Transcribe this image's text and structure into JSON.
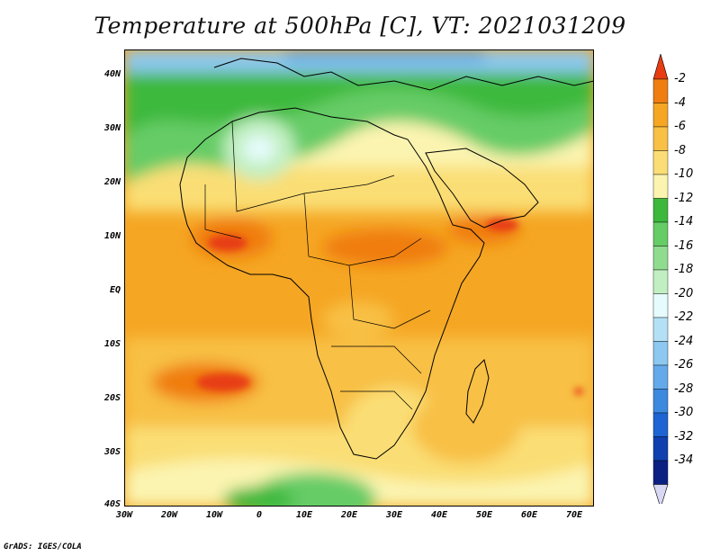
{
  "title": "Temperature at 500hPa [C], VT: 2021031209",
  "credit": "GrADS: IGES/COLA",
  "map": {
    "lat_labels": [
      "40N",
      "30N",
      "20N",
      "10N",
      "EQ",
      "10S",
      "20S",
      "30S",
      "40S"
    ],
    "lon_labels": [
      "30W",
      "20W",
      "10W",
      "0",
      "10E",
      "20E",
      "30E",
      "40E",
      "50E",
      "60E",
      "70E"
    ],
    "domain": {
      "lon": [
        -30,
        75
      ],
      "lat": [
        -40,
        45
      ]
    }
  },
  "colorbar": {
    "units": "C",
    "ticks": [
      "-2",
      "-4",
      "-6",
      "-8",
      "-10",
      "-12",
      "-14",
      "-16",
      "-18",
      "-20",
      "-22",
      "-24",
      "-26",
      "-28",
      "-30",
      "-32",
      "-34"
    ],
    "colors": [
      "#e83c12",
      "#f07d10",
      "#f5a623",
      "#f8c045",
      "#fade75",
      "#fbf4b0",
      "#3cb93c",
      "#66cc66",
      "#8fdc8f",
      "#c1efc1",
      "#e6fcfc",
      "#b4e0f5",
      "#8cc8ef",
      "#64aaea",
      "#3c8ae0",
      "#1e64d2",
      "#1040b0",
      "#0a2082"
    ],
    "top_arrow_color": "#e83c12",
    "bottom_arrow_color": "#d8d8f5"
  }
}
